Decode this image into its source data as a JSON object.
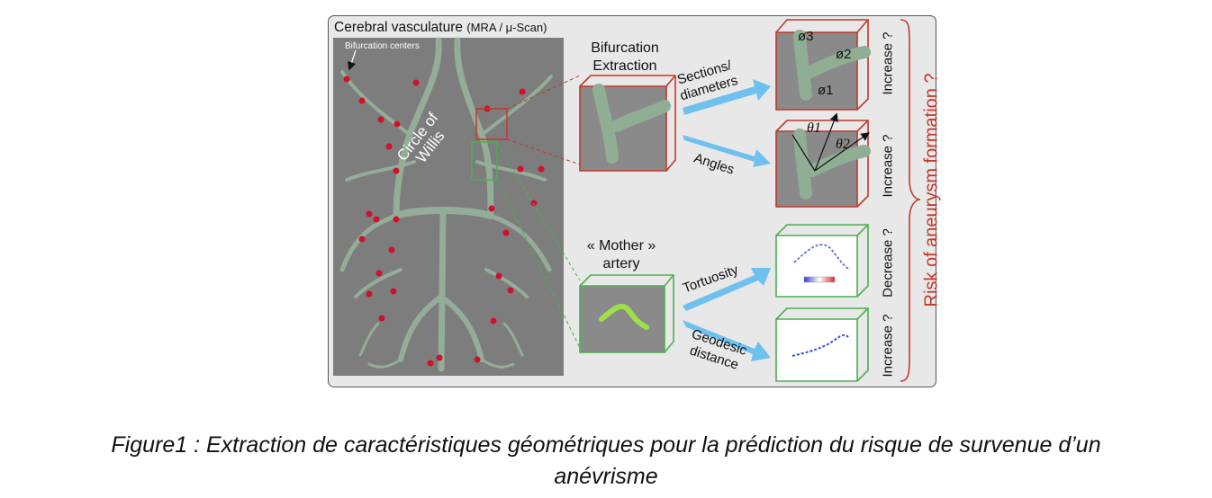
{
  "figure": {
    "panel_title": "Cerebral vasculature",
    "panel_title_small": "(MRA / μ-Scan)",
    "bifurcation_centers": "Bifurcation centers",
    "circle_of_willis": [
      "Circle of",
      "Willis"
    ],
    "bifurcation_extraction": [
      "Bifurcation",
      "Extraction"
    ],
    "mother_artery": [
      "« Mother »",
      "artery"
    ],
    "arrows": {
      "sections": [
        "Sections/",
        "diameters"
      ],
      "angles": "Angles",
      "tortuosity": "Tortuosity",
      "geodesic": [
        "Geodesic",
        "distance"
      ]
    },
    "diameters": [
      "ø3",
      "ø2",
      "ø1"
    ],
    "angles": [
      "θ1",
      "θ2"
    ],
    "trend_labels": [
      "Increase ?",
      "Increase ?",
      "Decrease ?",
      "Increase ?"
    ],
    "risk_label": "Risk of aneurysm formation ?"
  },
  "caption": {
    "line1": "Figure1 : Extraction de caractéristiques géométriques pour la prédiction du risque de survenue d’un",
    "line2": "anévrisme"
  },
  "colors": {
    "red_box": "#c0392b",
    "green_box": "#4caf50",
    "arrow_blue": "#6ec0ee",
    "vessel": "#8fae94"
  }
}
